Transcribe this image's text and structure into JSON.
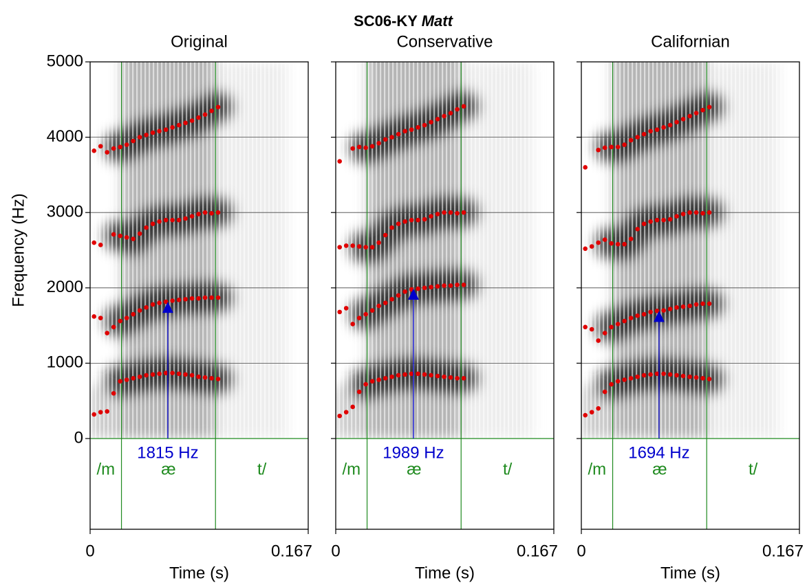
{
  "title": {
    "speaker": "SC06-KY",
    "word": "Matt"
  },
  "chart_data": [
    {
      "type": "scatter",
      "title": "Original",
      "ylabel": "Frequency (Hz)",
      "xlabel": "Time (s)",
      "show_ytick_labels": true,
      "xlim": [
        0,
        0.167
      ],
      "xticks": [
        0,
        0.167
      ],
      "ylim": [
        0,
        5000
      ],
      "yticks": [
        0,
        1000,
        2000,
        3000,
        4000,
        5000
      ],
      "grid": true,
      "x": [
        0.003,
        0.008,
        0.013,
        0.018,
        0.023,
        0.028,
        0.033,
        0.038,
        0.043,
        0.048,
        0.053,
        0.058,
        0.063,
        0.068,
        0.073,
        0.078,
        0.083,
        0.088,
        0.093,
        0.098
      ],
      "series": [
        {
          "color": "#e00000",
          "values": [
            320,
            350,
            360,
            600,
            760,
            780,
            800,
            820,
            840,
            850,
            860,
            870,
            870,
            860,
            850,
            840,
            820,
            810,
            800,
            790
          ]
        },
        {
          "color": "#e00000",
          "values": [
            1620,
            1600,
            1400,
            1480,
            1560,
            1600,
            1650,
            1700,
            1740,
            1780,
            1800,
            1815,
            1830,
            1840,
            1850,
            1860,
            1860,
            1870,
            1870,
            1870
          ]
        },
        {
          "color": "#e00000",
          "values": [
            2600,
            2570,
            null,
            2710,
            2690,
            2670,
            2650,
            2720,
            2800,
            2850,
            2880,
            2900,
            2900,
            2900,
            2920,
            2950,
            2980,
            3000,
            2990,
            3000
          ]
        },
        {
          "color": "#e00000",
          "values": [
            3820,
            3880,
            3800,
            3850,
            3870,
            3900,
            3950,
            4000,
            4030,
            4060,
            4080,
            4100,
            4130,
            4160,
            4190,
            4220,
            4260,
            4300,
            4350,
            4400
          ]
        }
      ],
      "boundaries": [
        0.024,
        0.096
      ],
      "segments": [
        "/m",
        "æ",
        "t/"
      ],
      "segment_color": "#1e8a1e",
      "measurement": {
        "time": 0.0595,
        "value": 1815,
        "value_label": "1815 Hz",
        "color": "#0000cc"
      }
    },
    {
      "type": "scatter",
      "title": "Conservative",
      "xlabel": "Time (s)",
      "show_ytick_labels": false,
      "xlim": [
        0,
        0.167
      ],
      "xticks": [
        0,
        0.167
      ],
      "ylim": [
        0,
        5000
      ],
      "yticks": [
        0,
        1000,
        2000,
        3000,
        4000,
        5000
      ],
      "grid": true,
      "x": [
        0.003,
        0.008,
        0.013,
        0.018,
        0.023,
        0.028,
        0.033,
        0.038,
        0.043,
        0.048,
        0.053,
        0.058,
        0.063,
        0.068,
        0.073,
        0.078,
        0.083,
        0.088,
        0.093,
        0.098
      ],
      "series": [
        {
          "color": "#e00000",
          "values": [
            300,
            350,
            420,
            620,
            720,
            760,
            780,
            800,
            820,
            840,
            850,
            860,
            860,
            850,
            840,
            830,
            820,
            810,
            800,
            800
          ]
        },
        {
          "color": "#e00000",
          "values": [
            1680,
            1730,
            1520,
            1600,
            1650,
            1700,
            1760,
            1800,
            1850,
            1900,
            1950,
            1980,
            1989,
            2000,
            2010,
            2020,
            2030,
            2030,
            2040,
            2040
          ]
        },
        {
          "color": "#e00000",
          "values": [
            2540,
            2560,
            2560,
            2550,
            2540,
            2540,
            2600,
            2700,
            2800,
            2850,
            2880,
            2900,
            2900,
            2910,
            2950,
            2980,
            3000,
            3000,
            2990,
            3000
          ]
        },
        {
          "color": "#e00000",
          "values": [
            3680,
            null,
            3850,
            3870,
            3860,
            3880,
            3920,
            3970,
            4000,
            4040,
            4080,
            4100,
            4130,
            4160,
            4200,
            4240,
            4280,
            4320,
            4370,
            4410
          ]
        }
      ],
      "boundaries": [
        0.024,
        0.096
      ],
      "segments": [
        "/m",
        "æ",
        "t/"
      ],
      "segment_color": "#1e8a1e",
      "measurement": {
        "time": 0.0595,
        "value": 1989,
        "value_label": "1989 Hz",
        "color": "#0000cc"
      }
    },
    {
      "type": "scatter",
      "title": "Californian",
      "xlabel": "Time (s)",
      "show_ytick_labels": false,
      "xlim": [
        0,
        0.167
      ],
      "xticks": [
        0,
        0.167
      ],
      "ylim": [
        0,
        5000
      ],
      "yticks": [
        0,
        1000,
        2000,
        3000,
        4000,
        5000
      ],
      "grid": true,
      "x": [
        0.003,
        0.008,
        0.013,
        0.018,
        0.023,
        0.028,
        0.033,
        0.038,
        0.043,
        0.048,
        0.053,
        0.058,
        0.063,
        0.068,
        0.073,
        0.078,
        0.083,
        0.088,
        0.093,
        0.098
      ],
      "series": [
        {
          "color": "#e00000",
          "values": [
            310,
            350,
            400,
            620,
            720,
            760,
            780,
            800,
            820,
            840,
            850,
            860,
            860,
            850,
            840,
            830,
            820,
            810,
            800,
            790
          ]
        },
        {
          "color": "#e00000",
          "values": [
            1480,
            1450,
            1300,
            1400,
            1480,
            1520,
            1560,
            1600,
            1630,
            1650,
            1680,
            1694,
            1700,
            1720,
            1740,
            1750,
            1760,
            1780,
            1790,
            1790
          ]
        },
        {
          "color": "#e00000",
          "values": [
            2520,
            2550,
            2600,
            2640,
            2590,
            2580,
            2580,
            2650,
            2780,
            2850,
            2880,
            2900,
            2900,
            2910,
            2950,
            2980,
            3000,
            3000,
            2990,
            3000
          ]
        },
        {
          "color": "#e00000",
          "values": [
            3600,
            null,
            3830,
            3860,
            3870,
            3870,
            3900,
            3960,
            4000,
            4040,
            4080,
            4100,
            4130,
            4160,
            4200,
            4240,
            4280,
            4320,
            4360,
            4400
          ]
        }
      ],
      "boundaries": [
        0.024,
        0.096
      ],
      "segments": [
        "/m",
        "æ",
        "t/"
      ],
      "segment_color": "#1e8a1e",
      "measurement": {
        "time": 0.0595,
        "value": 1694,
        "value_label": "1694 Hz",
        "color": "#0000cc"
      }
    }
  ]
}
